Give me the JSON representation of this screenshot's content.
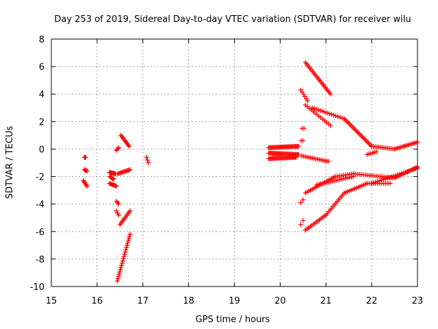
{
  "chart_data": {
    "type": "scatter",
    "title": "Day 253 of 2019, Sidereal Day-to-day VTEC variation (SDTVAR) for receiver wilu",
    "xlabel": "GPS time / hours",
    "ylabel": "SDTVAR / TECUs",
    "xlim": [
      15,
      23
    ],
    "ylim": [
      -10,
      8
    ],
    "x_ticks": [
      15,
      16,
      17,
      18,
      19,
      20,
      21,
      22,
      23
    ],
    "y_ticks": [
      -10,
      -8,
      -6,
      -4,
      -2,
      0,
      2,
      4,
      6,
      8
    ],
    "x_tick_labels": [
      "15",
      "16",
      "17",
      "18",
      "19",
      "20",
      "21",
      "22",
      "23"
    ],
    "y_tick_labels": [
      "-10",
      "-8",
      "-6",
      "-4",
      "-2",
      "0",
      "2",
      "4",
      "6",
      "8"
    ],
    "grid": true,
    "marker": "plus",
    "marker_color": "#ff0000",
    "segments": [
      {
        "x0": 15.72,
        "y0": -0.6,
        "x1": 15.75,
        "y1": -0.6,
        "n": 3
      },
      {
        "x0": 15.72,
        "y0": -1.5,
        "x1": 15.78,
        "y1": -1.6,
        "n": 4
      },
      {
        "x0": 15.7,
        "y0": -2.3,
        "x1": 15.78,
        "y1": -2.7,
        "n": 6
      },
      {
        "x0": 16.27,
        "y0": -1.7,
        "x1": 16.4,
        "y1": -1.8,
        "n": 8
      },
      {
        "x0": 16.27,
        "y0": -2.5,
        "x1": 16.42,
        "y1": -2.7,
        "n": 8
      },
      {
        "x0": 16.28,
        "y0": -2.0,
        "x1": 16.36,
        "y1": -2.2,
        "n": 5
      },
      {
        "x0": 16.42,
        "y0": -0.1,
        "x1": 16.47,
        "y1": 0.1,
        "n": 3
      },
      {
        "x0": 16.52,
        "y0": 1.0,
        "x1": 16.7,
        "y1": 0.2,
        "n": 10
      },
      {
        "x0": 16.45,
        "y0": -1.8,
        "x1": 16.72,
        "y1": -1.5,
        "n": 12
      },
      {
        "x0": 16.42,
        "y0": -3.8,
        "x1": 16.47,
        "y1": -4.0,
        "n": 3
      },
      {
        "x0": 16.42,
        "y0": -4.5,
        "x1": 16.47,
        "y1": -4.8,
        "n": 3
      },
      {
        "x0": 16.5,
        "y0": -5.5,
        "x1": 16.72,
        "y1": -4.5,
        "n": 10
      },
      {
        "x0": 16.44,
        "y0": -9.6,
        "x1": 16.72,
        "y1": -6.2,
        "n": 22
      },
      {
        "x0": 17.08,
        "y0": -0.6,
        "x1": 17.12,
        "y1": -1.0,
        "n": 3
      },
      {
        "x0": 19.75,
        "y0": 0.1,
        "x1": 20.4,
        "y1": 0.2,
        "n": 30
      },
      {
        "x0": 19.75,
        "y0": -0.3,
        "x1": 20.4,
        "y1": -0.4,
        "n": 30
      },
      {
        "x0": 19.75,
        "y0": -0.7,
        "x1": 20.35,
        "y1": -0.6,
        "n": 28
      },
      {
        "x0": 20.47,
        "y0": -0.5,
        "x1": 21.05,
        "y1": -0.9,
        "n": 16
      },
      {
        "x0": 20.46,
        "y0": 0.6,
        "x1": 20.5,
        "y1": 0.6,
        "n": 2
      },
      {
        "x0": 20.48,
        "y0": 1.5,
        "x1": 20.52,
        "y1": 1.5,
        "n": 2
      },
      {
        "x0": 20.55,
        "y0": 6.3,
        "x1": 21.1,
        "y1": 4.0,
        "n": 22
      },
      {
        "x0": 20.45,
        "y0": 4.3,
        "x1": 20.6,
        "y1": 3.5,
        "n": 6
      },
      {
        "x0": 20.55,
        "y0": 3.2,
        "x1": 21.1,
        "y1": 1.7,
        "n": 14
      },
      {
        "x0": 20.7,
        "y0": 3.0,
        "x1": 21.4,
        "y1": 2.2,
        "n": 16
      },
      {
        "x0": 21.4,
        "y0": 2.2,
        "x1": 22.0,
        "y1": 0.2,
        "n": 22
      },
      {
        "x0": 21.9,
        "y0": -0.4,
        "x1": 22.1,
        "y1": -0.2,
        "n": 6
      },
      {
        "x0": 22.0,
        "y0": 0.2,
        "x1": 22.5,
        "y1": 0.0,
        "n": 14
      },
      {
        "x0": 22.5,
        "y0": 0.0,
        "x1": 23.0,
        "y1": 0.5,
        "n": 16
      },
      {
        "x0": 20.55,
        "y0": -3.2,
        "x1": 21.2,
        "y1": -2.0,
        "n": 18
      },
      {
        "x0": 20.8,
        "y0": -2.6,
        "x1": 21.6,
        "y1": -2.0,
        "n": 20
      },
      {
        "x0": 21.2,
        "y0": -2.0,
        "x1": 21.6,
        "y1": -1.8,
        "n": 10
      },
      {
        "x0": 21.6,
        "y0": -1.8,
        "x1": 22.5,
        "y1": -2.1,
        "n": 22
      },
      {
        "x0": 22.5,
        "y0": -2.1,
        "x1": 23.0,
        "y1": -1.3,
        "n": 16
      },
      {
        "x0": 22.0,
        "y0": -2.5,
        "x1": 23.0,
        "y1": -1.4,
        "n": 24
      },
      {
        "x0": 20.45,
        "y0": -3.9,
        "x1": 20.5,
        "y1": -3.7,
        "n": 2
      },
      {
        "x0": 20.45,
        "y0": -5.5,
        "x1": 20.5,
        "y1": -5.2,
        "n": 2
      },
      {
        "x0": 20.55,
        "y0": -5.9,
        "x1": 21.0,
        "y1": -4.8,
        "n": 14
      },
      {
        "x0": 21.0,
        "y0": -4.8,
        "x1": 21.4,
        "y1": -3.2,
        "n": 14
      },
      {
        "x0": 21.4,
        "y0": -3.2,
        "x1": 21.9,
        "y1": -2.5,
        "n": 14
      },
      {
        "x0": 21.9,
        "y0": -2.5,
        "x1": 22.4,
        "y1": -2.5,
        "n": 12
      }
    ]
  }
}
